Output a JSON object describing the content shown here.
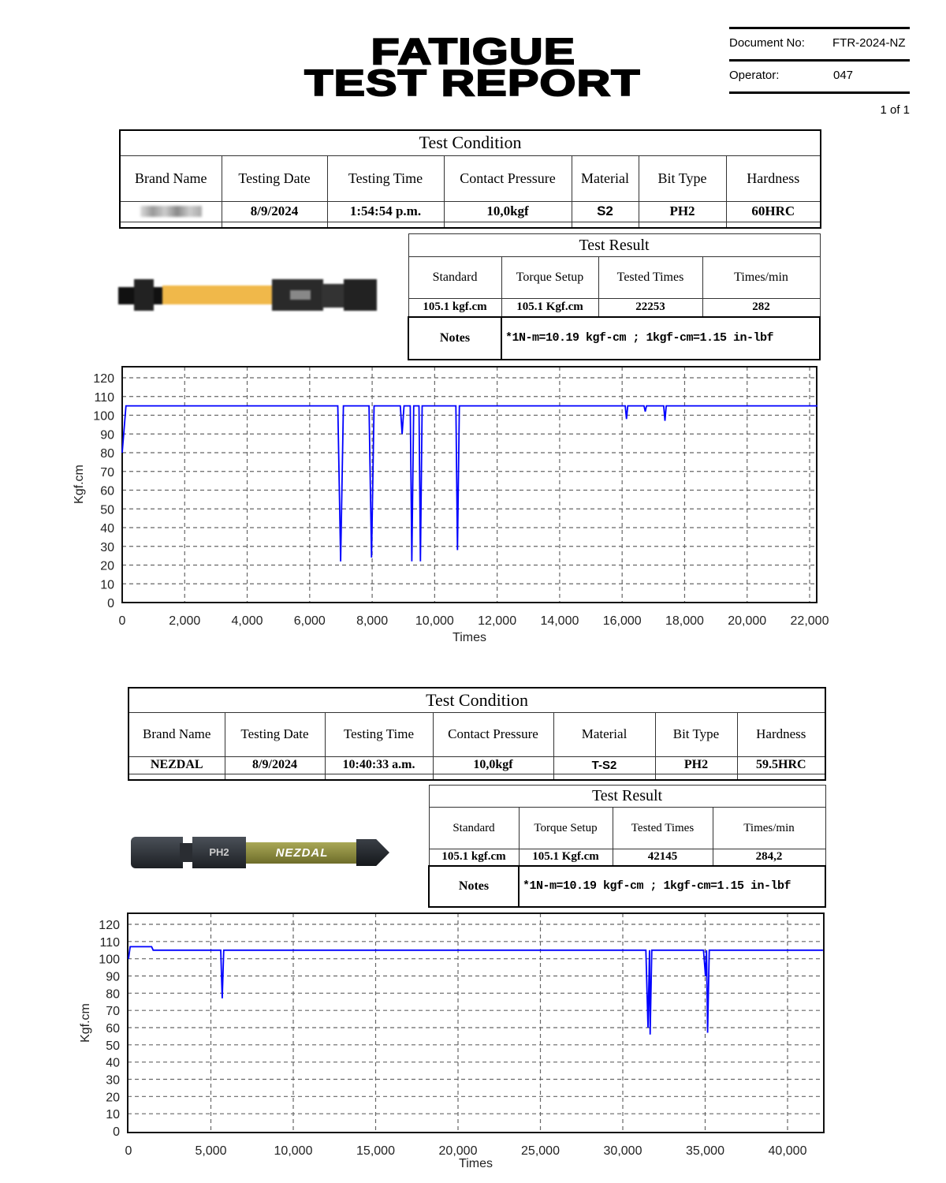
{
  "header": {
    "title_line1": "FATIGUE",
    "title_line2": "TEST REPORT",
    "document_no_label": "Document No:",
    "document_no": "FTR-2024-NZ",
    "operator_label": "Operator:",
    "operator": "047",
    "page": "1 of 1"
  },
  "tests": [
    {
      "condition": {
        "title": "Test Condition",
        "headers": [
          "Brand Name",
          "Testing Date",
          "Testing Time",
          "Contact Pressure",
          "Material",
          "Bit Type",
          "Hardness"
        ],
        "values": [
          "",
          "8/9/2024",
          "1:54:54 p.m.",
          "10,0kgf",
          "S2",
          "PH2",
          "60HRC"
        ]
      },
      "result": {
        "title": "Test Result",
        "headers": [
          "Standard",
          "Torque Setup",
          "Tested Times",
          "Times/min"
        ],
        "values": [
          "105.1 kgf.cm",
          "105.1 Kgf.cm",
          "22253",
          "282"
        ],
        "notes_label": "Notes",
        "notes": "*1N-m=10.19 kgf-cm ; 1kgf-cm=1.15 in-lbf"
      },
      "product_image": {
        "brand_blurred": true,
        "shaft_color": "#f0b84a"
      }
    },
    {
      "condition": {
        "title": "Test Condition",
        "headers": [
          "Brand Name",
          "Testing Date",
          "Testing Time",
          "Contact Pressure",
          "Material",
          "Bit Type",
          "Hardness"
        ],
        "values": [
          "NEZDAL",
          "8/9/2024",
          "10:40:33 a.m.",
          "10,0kgf",
          "T-S2",
          "PH2",
          "59.5HRC"
        ]
      },
      "result": {
        "title": "Test Result",
        "headers": [
          "Standard",
          "Torque Setup",
          "Tested Times",
          "Times/min"
        ],
        "values": [
          "105.1 kgf.cm",
          "105.1 Kgf.cm",
          "42145",
          "284,2"
        ],
        "notes_label": "Notes",
        "notes": "*1N-m=10.19 kgf-cm ; 1kgf-cm=1.15 in-lbf"
      },
      "product_image": {
        "bit_label": "PH2",
        "logo": "NEZDAL",
        "shaft_color": "#8a8a3a"
      }
    }
  ],
  "chart_data": [
    {
      "type": "line",
      "xlabel": "Times",
      "ylabel": "Kgf.cm",
      "xlim": [
        0,
        22250
      ],
      "ylim": [
        0,
        125
      ],
      "xticks": [
        0,
        2000,
        4000,
        6000,
        8000,
        10000,
        12000,
        14000,
        16000,
        18000,
        20000,
        22000
      ],
      "xtick_labels": [
        "0",
        "2,000",
        "4,000",
        "6,000",
        "8,000",
        "10,000",
        "12,000",
        "14,000",
        "16,000",
        "18,000",
        "20,000",
        "22,000"
      ],
      "yticks": [
        0,
        10,
        20,
        30,
        40,
        50,
        60,
        70,
        80,
        90,
        100,
        110,
        120
      ],
      "ytick_labels": [
        "0",
        "10",
        "20",
        "30",
        "40",
        "50",
        "60",
        "70",
        "80",
        "90",
        "100",
        "110",
        "120"
      ],
      "grid": true,
      "line_color": "#0000ff",
      "series": [
        {
          "x": [
            0,
            120,
            6900,
            6990,
            7080,
            7900,
            7980,
            8060,
            8900,
            8960,
            9020,
            9220,
            9270,
            9330,
            9500,
            9545,
            9600,
            10680,
            10730,
            10790,
            16100,
            16140,
            16180,
            16700,
            16740,
            16780,
            17330,
            17370,
            17410,
            22250
          ],
          "y": [
            80,
            105,
            105,
            22,
            105,
            105,
            24,
            105,
            105,
            90,
            105,
            105,
            22,
            105,
            105,
            22,
            105,
            105,
            28,
            105,
            105,
            98,
            105,
            105,
            102,
            105,
            105,
            97,
            105,
            105
          ]
        }
      ]
    },
    {
      "type": "line",
      "xlabel": "Times",
      "ylabel": "Kgf.cm",
      "xlim": [
        0,
        42150
      ],
      "ylim": [
        0,
        126
      ],
      "xticks": [
        0,
        5000,
        10000,
        15000,
        20000,
        25000,
        30000,
        35000,
        40000
      ],
      "xtick_labels": [
        "0",
        "5,000",
        "10,000",
        "15,000",
        "20,000",
        "25,000",
        "30,000",
        "35,000",
        "40,000"
      ],
      "yticks": [
        0,
        10,
        20,
        30,
        40,
        50,
        60,
        70,
        80,
        90,
        100,
        110,
        120
      ],
      "ytick_labels": [
        "0",
        "10",
        "20",
        "30",
        "40",
        "50",
        "60",
        "70",
        "80",
        "90",
        "100",
        "110",
        "120"
      ],
      "grid": true,
      "line_color": "#0000ff",
      "series": [
        {
          "x": [
            0,
            100,
            1400,
            1500,
            5600,
            5690,
            5780,
            31400,
            31530,
            31620,
            31660,
            31760,
            34900,
            35020,
            35080,
            35150,
            35250,
            42150
          ],
          "y": [
            100,
            107,
            107,
            105,
            105,
            77,
            105,
            105,
            60,
            105,
            56,
            105,
            105,
            90,
            105,
            57,
            105,
            105
          ]
        }
      ]
    }
  ]
}
